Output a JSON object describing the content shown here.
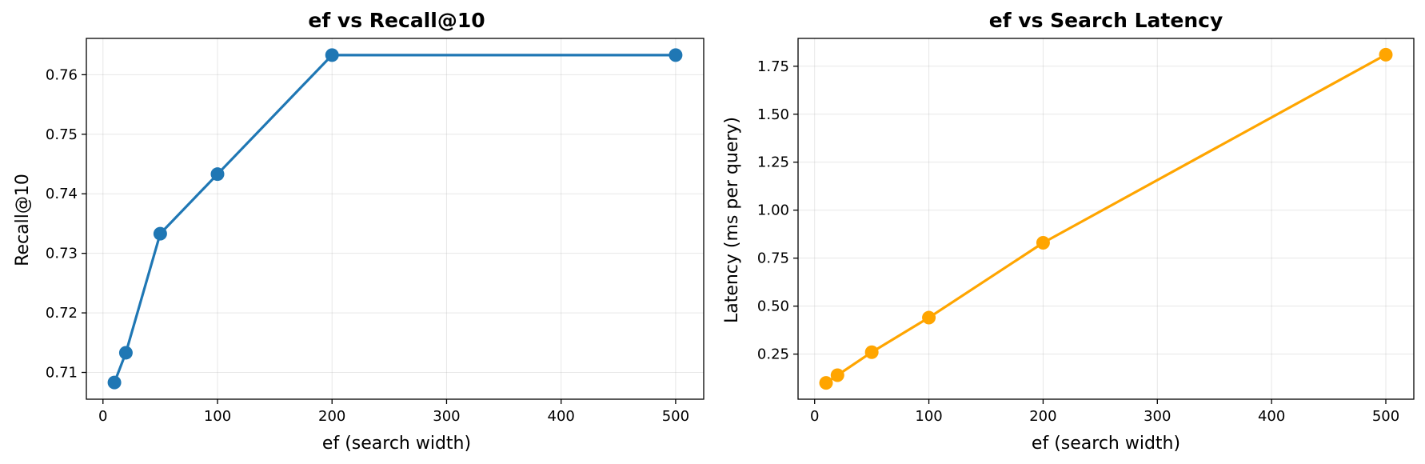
{
  "chart_data": [
    {
      "type": "line",
      "title": "ef vs Recall@10",
      "xlabel": "ef (search width)",
      "ylabel": "Recall@10",
      "x": [
        10,
        20,
        50,
        100,
        200,
        500
      ],
      "series": [
        {
          "values": [
            0.7083,
            0.7133,
            0.7333,
            0.7433,
            0.7633,
            0.7633
          ],
          "color": "#1f77b4"
        }
      ],
      "xlim": [
        -14.5,
        524.5
      ],
      "ylim": [
        0.7055,
        0.7661
      ],
      "xticks": [
        0,
        100,
        200,
        300,
        400,
        500
      ],
      "xtick_labels": [
        "0",
        "100",
        "200",
        "300",
        "400",
        "500"
      ],
      "yticks": [
        0.71,
        0.72,
        0.73,
        0.74,
        0.75,
        0.76
      ],
      "ytick_labels": [
        "0.71",
        "0.72",
        "0.73",
        "0.74",
        "0.75",
        "0.76"
      ],
      "grid": true,
      "legend": "none"
    },
    {
      "type": "line",
      "title": "ef vs Search Latency",
      "xlabel": "ef (search width)",
      "ylabel": "Latency (ms per query)",
      "x": [
        10,
        20,
        50,
        100,
        200,
        500
      ],
      "series": [
        {
          "values": [
            0.1,
            0.14,
            0.26,
            0.44,
            0.83,
            1.81
          ],
          "color": "#ffa500"
        }
      ],
      "xlim": [
        -14.5,
        524.5
      ],
      "ylim": [
        0.015,
        1.895
      ],
      "xticks": [
        0,
        100,
        200,
        300,
        400,
        500
      ],
      "xtick_labels": [
        "0",
        "100",
        "200",
        "300",
        "400",
        "500"
      ],
      "yticks": [
        0.25,
        0.5,
        0.75,
        1.0,
        1.25,
        1.5,
        1.75
      ],
      "ytick_labels": [
        "0.25",
        "0.50",
        "0.75",
        "1.00",
        "1.25",
        "1.50",
        "1.75"
      ],
      "grid": true,
      "legend": "none"
    }
  ]
}
